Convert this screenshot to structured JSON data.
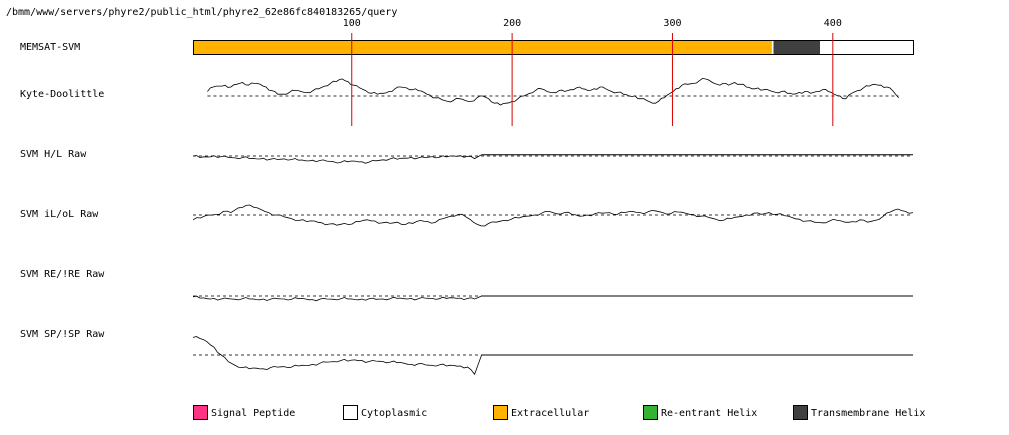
{
  "header": {
    "path": "/bmm/www/servers/phyre2/public_html/phyre2_62e86fc840183265/query"
  },
  "colors": {
    "extracellular": "#FFB300",
    "transmembrane": "#404040",
    "cytoplasmic": "#FFFFFF",
    "signal": "#FF3385",
    "reentrant": "#33B233",
    "tick_line": "#DD0000"
  },
  "chart_data": {
    "type": "line",
    "sequence_length": 450,
    "ticks": [
      100,
      200,
      300,
      400
    ],
    "tracks": [
      {
        "label": "MEMSAT-SVM",
        "kind": "topology",
        "segments": [
          {
            "start": 1,
            "end": 362,
            "class": "extracellular"
          },
          {
            "start": 363,
            "end": 392,
            "class": "transmembrane"
          },
          {
            "start": 393,
            "end": 450,
            "class": "cytoplasmic"
          }
        ]
      },
      {
        "label": "Kyte-Doolittle",
        "kind": "profile",
        "x_start": 10,
        "x_end": 441,
        "trace_end": 441,
        "y": [
          0.5,
          1.0,
          1.1,
          1.2,
          1.0,
          1.3,
          1.5,
          1.2,
          1.4,
          1.3,
          1.0,
          0.6,
          0.2,
          0.2,
          0.4,
          0.6,
          0.5,
          0.4,
          0.6,
          0.8,
          1.1,
          1.4,
          1.6,
          1.9,
          1.6,
          1.2,
          0.9,
          0.6,
          0.3,
          0.2,
          0.3,
          0.5,
          0.8,
          1.0,
          0.9,
          0.7,
          0.6,
          0.4,
          0.1,
          -0.2,
          -0.4,
          -0.6,
          -0.5,
          -0.3,
          -0.5,
          -0.6,
          -0.2,
          0.0,
          -0.3,
          -0.8,
          -1.0,
          -0.8,
          -0.6,
          -0.3,
          0.0,
          0.3,
          0.6,
          0.8,
          0.5,
          0.4,
          0.6,
          0.5,
          0.7,
          0.9,
          0.8,
          0.6,
          0.8,
          1.0,
          0.8,
          0.5,
          0.4,
          0.2,
          0.0,
          0.0,
          -0.3,
          -0.5,
          -0.8,
          -0.6,
          -0.2,
          0.3,
          0.8,
          1.2,
          1.3,
          1.4,
          1.7,
          1.9,
          1.6,
          1.3,
          1.4,
          1.2,
          1.5,
          1.3,
          1.0,
          0.8,
          0.9,
          0.7,
          0.6,
          0.4,
          0.5,
          0.3,
          0.2,
          0.4,
          0.5,
          0.3,
          0.5,
          0.7,
          0.5,
          0.2,
          0.0,
          -0.3,
          0.3,
          0.6,
          0.9,
          1.1,
          1.3,
          1.2,
          1.0,
          0.6,
          -0.2
        ]
      },
      {
        "label": "SVM H/L Raw",
        "kind": "profile",
        "x_start": 1,
        "x_end": 450,
        "trace_end": 181,
        "y": [
          0.0,
          -0.5,
          -0.3,
          0.1,
          -0.2,
          -0.4,
          -0.6,
          -0.5,
          -0.8,
          -0.9,
          -0.7,
          -1.0,
          -1.1,
          -0.9,
          -1.1,
          -1.3,
          -1.5,
          -1.3,
          -1.4,
          -1.6,
          -1.8,
          -2.0,
          -1.8,
          -1.6,
          -1.8,
          -1.9,
          -1.5,
          -1.2,
          -0.9,
          -1.0,
          -0.7,
          -0.4,
          -0.6,
          -0.5,
          -0.2,
          -0.4,
          -0.3,
          0.0,
          0.1,
          -0.1,
          -0.8,
          0.4
        ]
      },
      {
        "label": "SVM iL/oL Raw",
        "kind": "profile",
        "x_start": 1,
        "x_end": 450,
        "trace_end": 450,
        "y": [
          -0.8,
          -0.5,
          0.0,
          0.1,
          0.6,
          0.4,
          1.2,
          1.6,
          1.3,
          0.9,
          0.4,
          0.0,
          -0.3,
          -0.6,
          -0.9,
          -1.1,
          -1.0,
          -1.3,
          -1.5,
          -1.7,
          -1.4,
          -1.5,
          -1.1,
          -0.8,
          -1.0,
          -1.3,
          -1.4,
          -1.2,
          -1.6,
          -1.4,
          -0.9,
          -1.1,
          -1.2,
          -0.6,
          -0.2,
          0.1,
          -0.3,
          -1.2,
          -1.8,
          -1.4,
          -1.2,
          -0.9,
          -0.7,
          -0.5,
          -0.2,
          0.0,
          0.3,
          0.6,
          0.2,
          0.4,
          0.1,
          -0.2,
          0.0,
          0.2,
          0.3,
          0.4,
          0.1,
          0.4,
          0.6,
          0.4,
          0.5,
          0.7,
          0.4,
          0.2,
          0.5,
          0.3,
          0.1,
          -0.2,
          -0.4,
          -0.7,
          -0.9,
          -0.6,
          -0.3,
          0.0,
          0.3,
          0.1,
          0.4,
          0.1,
          -0.1,
          -0.4,
          -0.7,
          -1.0,
          -1.2,
          -1.3,
          -1.0,
          -0.9,
          -1.2,
          -1.1,
          -0.8,
          -1.2,
          -0.9,
          -0.3,
          0.5,
          1.0,
          0.6,
          0.4
        ]
      },
      {
        "label": "SVM RE/!RE Raw",
        "kind": "profile",
        "x_start": 1,
        "x_end": 450,
        "trace_end": 181,
        "y": [
          -0.3,
          -0.7,
          -0.9,
          -0.8,
          -1.0,
          -0.9,
          -1.1,
          -0.9,
          -1.0,
          -1.2,
          -1.0,
          -1.1,
          -0.9,
          -1.0,
          -1.1,
          -0.9,
          -1.0,
          -1.2,
          -1.1,
          -1.0,
          -1.1,
          -0.9,
          -1.0,
          -1.2,
          -1.0,
          -0.9,
          -1.1,
          -1.0,
          -0.9,
          -0.8,
          -0.9,
          -0.8,
          -0.9,
          -0.7,
          -0.8,
          -0.9,
          -0.8,
          -0.6,
          -0.7,
          -0.8,
          -1.0,
          0.0
        ]
      },
      {
        "label": "SVM SP/!SP Raw",
        "kind": "profile",
        "x_start": 1,
        "x_end": 450,
        "trace_end": 181,
        "y": [
          3.2,
          3.0,
          2.4,
          1.4,
          0.0,
          -1.2,
          -1.9,
          -2.3,
          -2.5,
          -2.4,
          -2.5,
          -2.3,
          -2.2,
          -2.1,
          -2.2,
          -2.0,
          -1.9,
          -1.7,
          -1.5,
          -1.3,
          -1.2,
          -1.0,
          -1.1,
          -0.9,
          -1.0,
          -1.2,
          -1.1,
          -1.2,
          -1.3,
          -1.4,
          -1.5,
          -1.7,
          -1.6,
          -1.8,
          -1.9,
          -1.8,
          -2.0,
          -1.9,
          -2.0,
          -2.2,
          -3.5,
          0.0
        ]
      }
    ],
    "legend": [
      {
        "label": "Signal Peptide",
        "color": "#FF3385"
      },
      {
        "label": "Cytoplasmic",
        "color": "#FFFFFF"
      },
      {
        "label": "Extracellular",
        "color": "#FFB300"
      },
      {
        "label": "Re-entrant Helix",
        "color": "#33B233"
      },
      {
        "label": "Transmembrane Helix",
        "color": "#404040"
      }
    ]
  }
}
